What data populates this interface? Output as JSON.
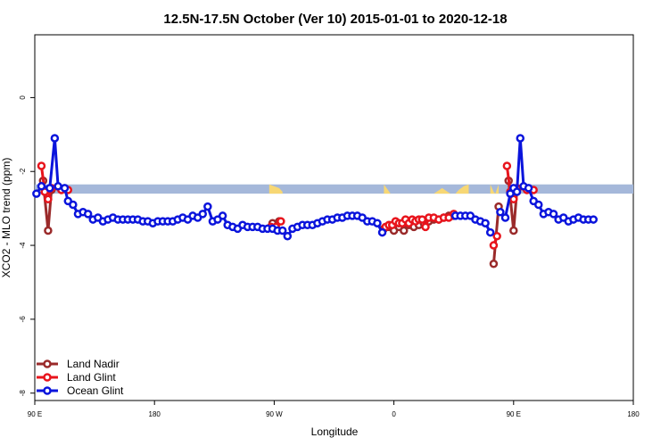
{
  "chart_data": {
    "type": "line",
    "title": "12.5N-17.5N October (Ver 10)   2015-01-01 to 2020-12-18",
    "xlabel": "Longitude",
    "ylabel": "XCO2 - MLO trend (ppm)",
    "xlim": [
      90,
      450
    ],
    "ylim": [
      -8.2,
      1.7
    ],
    "x_ticks": [
      {
        "value": 90,
        "label": "90 E"
      },
      {
        "value": 162,
        "label": "180"
      },
      {
        "value": 234,
        "label": "90 W"
      },
      {
        "value": 306,
        "label": "0"
      },
      {
        "value": 378,
        "label": "90 E"
      },
      {
        "value": 450,
        "label": "180"
      }
    ],
    "y_ticks": [
      {
        "value": 0,
        "label": "0"
      },
      {
        "value": -2,
        "label": "-2"
      },
      {
        "value": -4,
        "label": "-4"
      },
      {
        "value": -6,
        "label": "-6"
      },
      {
        "value": -8,
        "label": "-8"
      }
    ],
    "grid": false,
    "legend_position": "bottom-left",
    "land_strip": {
      "y_top": -2.35,
      "y_bottom": -2.6,
      "ocean_color": "#a5b8da",
      "land_color": "#f7d774",
      "land_segments": [
        {
          "x": [
            231,
            234,
            237,
            239
          ],
          "top": [
            -2.35,
            -2.4,
            -2.45,
            -2.55
          ]
        },
        {
          "x": [
            300,
            304,
            310,
            320,
            330,
            335,
            340
          ],
          "top": [
            -2.35,
            -2.6,
            -2.6,
            -2.6,
            -2.6,
            -2.45,
            -2.6
          ]
        },
        {
          "x": [
            343,
            345,
            348,
            351
          ],
          "top": [
            -2.6,
            -2.5,
            -2.4,
            -2.35
          ]
        },
        {
          "x": [
            364,
            366,
            367,
            369
          ],
          "top": [
            -2.35,
            -2.55,
            -2.6,
            -2.35
          ]
        }
      ]
    },
    "series": [
      {
        "name": "Land Nadir",
        "color": "#9a2a2a",
        "segments": [
          [
            [
              95,
              -2.25
            ],
            [
              98,
              -3.6
            ],
            [
              100,
              -2.5
            ]
          ],
          [
            [
              233,
              -3.4
            ],
            [
              235,
              -3.55
            ],
            [
              237,
              -3.35
            ]
          ],
          [
            [
              300,
              -3.55
            ],
            [
              303,
              -3.5
            ],
            [
              306,
              -3.6
            ],
            [
              309,
              -3.5
            ],
            [
              312,
              -3.6
            ],
            [
              315,
              -3.45
            ],
            [
              318,
              -3.5
            ],
            [
              321,
              -3.45
            ],
            [
              324,
              -3.4
            ],
            [
              327,
              -3.35
            ],
            [
              330,
              -3.3
            ],
            [
              333,
              -3.3
            ],
            [
              336,
              -3.25
            ],
            [
              339,
              -3.2
            ],
            [
              342,
              -3.2
            ]
          ],
          [
            [
              366,
              -4.5
            ],
            [
              369,
              -2.95
            ]
          ],
          [
            [
              375,
              -2.25
            ],
            [
              378,
              -3.6
            ],
            [
              380,
              -2.5
            ]
          ]
        ]
      },
      {
        "name": "Land Glint",
        "color": "#e8141c",
        "segments": [
          [
            [
              94,
              -1.85
            ],
            [
              96,
              -2.55
            ],
            [
              98,
              -2.75
            ],
            [
              100,
              -2.45
            ],
            [
              106,
              -2.5
            ],
            [
              110,
              -2.5
            ]
          ],
          [
            [
              232,
              -3.5
            ],
            [
              235,
              -3.5
            ],
            [
              238,
              -3.35
            ]
          ],
          [
            [
              301,
              -3.5
            ],
            [
              303,
              -3.45
            ],
            [
              305,
              -3.45
            ],
            [
              307,
              -3.35
            ],
            [
              309,
              -3.4
            ],
            [
              311,
              -3.4
            ],
            [
              313,
              -3.3
            ],
            [
              315,
              -3.4
            ],
            [
              317,
              -3.3
            ],
            [
              319,
              -3.35
            ],
            [
              321,
              -3.3
            ],
            [
              323,
              -3.3
            ],
            [
              325,
              -3.5
            ],
            [
              327,
              -3.25
            ],
            [
              330,
              -3.25
            ],
            [
              333,
              -3.3
            ],
            [
              336,
              -3.25
            ],
            [
              339,
              -3.25
            ],
            [
              342,
              -3.15
            ]
          ],
          [
            [
              366,
              -4.0
            ],
            [
              368,
              -3.75
            ]
          ],
          [
            [
              374,
              -1.85
            ],
            [
              376,
              -2.55
            ],
            [
              378,
              -2.75
            ],
            [
              380,
              -2.45
            ],
            [
              386,
              -2.5
            ],
            [
              390,
              -2.5
            ]
          ]
        ]
      },
      {
        "name": "Ocean Glint",
        "color": "#0a14dc",
        "segments": [
          [
            [
              91,
              -2.6
            ],
            [
              94,
              -2.4
            ],
            [
              99,
              -2.45
            ],
            [
              102,
              -1.1
            ],
            [
              104,
              -2.4
            ],
            [
              108,
              -2.45
            ],
            [
              110,
              -2.8
            ],
            [
              113,
              -2.9
            ],
            [
              116,
              -3.15
            ],
            [
              119,
              -3.1
            ],
            [
              122,
              -3.15
            ],
            [
              125,
              -3.3
            ],
            [
              128,
              -3.25
            ],
            [
              131,
              -3.35
            ],
            [
              134,
              -3.3
            ],
            [
              137,
              -3.25
            ],
            [
              140,
              -3.3
            ],
            [
              143,
              -3.3
            ],
            [
              146,
              -3.3
            ],
            [
              149,
              -3.3
            ],
            [
              152,
              -3.3
            ],
            [
              155,
              -3.35
            ],
            [
              158,
              -3.35
            ],
            [
              161,
              -3.4
            ],
            [
              164,
              -3.35
            ],
            [
              167,
              -3.35
            ],
            [
              170,
              -3.35
            ],
            [
              173,
              -3.35
            ],
            [
              176,
              -3.3
            ],
            [
              179,
              -3.25
            ],
            [
              182,
              -3.3
            ],
            [
              185,
              -3.2
            ],
            [
              188,
              -3.25
            ],
            [
              191,
              -3.15
            ],
            [
              194,
              -2.95
            ],
            [
              197,
              -3.35
            ],
            [
              200,
              -3.3
            ],
            [
              203,
              -3.2
            ],
            [
              206,
              -3.45
            ],
            [
              209,
              -3.5
            ],
            [
              212,
              -3.55
            ],
            [
              215,
              -3.45
            ],
            [
              218,
              -3.5
            ],
            [
              221,
              -3.5
            ],
            [
              224,
              -3.5
            ],
            [
              227,
              -3.55
            ],
            [
              230,
              -3.55
            ],
            [
              233,
              -3.55
            ],
            [
              236,
              -3.6
            ],
            [
              239,
              -3.6
            ],
            [
              242,
              -3.75
            ],
            [
              245,
              -3.55
            ],
            [
              248,
              -3.5
            ],
            [
              251,
              -3.45
            ],
            [
              254,
              -3.45
            ],
            [
              257,
              -3.45
            ],
            [
              260,
              -3.4
            ],
            [
              263,
              -3.35
            ],
            [
              266,
              -3.3
            ],
            [
              269,
              -3.3
            ],
            [
              272,
              -3.25
            ],
            [
              275,
              -3.25
            ],
            [
              278,
              -3.2
            ],
            [
              281,
              -3.2
            ],
            [
              284,
              -3.2
            ],
            [
              287,
              -3.25
            ],
            [
              290,
              -3.35
            ],
            [
              293,
              -3.35
            ],
            [
              296,
              -3.4
            ],
            [
              299,
              -3.65
            ]
          ],
          [
            [
              343,
              -3.2
            ],
            [
              346,
              -3.2
            ],
            [
              349,
              -3.2
            ],
            [
              352,
              -3.2
            ],
            [
              355,
              -3.3
            ],
            [
              358,
              -3.35
            ],
            [
              361,
              -3.4
            ],
            [
              364,
              -3.65
            ]
          ],
          [
            [
              370,
              -3.1
            ],
            [
              373,
              -3.25
            ],
            [
              376,
              -2.6
            ],
            [
              378,
              -2.45
            ],
            [
              380,
              -2.55
            ],
            [
              382,
              -1.1
            ],
            [
              384,
              -2.4
            ],
            [
              387,
              -2.45
            ],
            [
              390,
              -2.8
            ],
            [
              393,
              -2.9
            ],
            [
              396,
              -3.15
            ],
            [
              399,
              -3.1
            ],
            [
              402,
              -3.15
            ],
            [
              405,
              -3.3
            ],
            [
              408,
              -3.25
            ],
            [
              411,
              -3.35
            ],
            [
              414,
              -3.3
            ],
            [
              417,
              -3.25
            ],
            [
              420,
              -3.3
            ],
            [
              423,
              -3.3
            ],
            [
              426,
              -3.3
            ]
          ]
        ]
      }
    ]
  }
}
